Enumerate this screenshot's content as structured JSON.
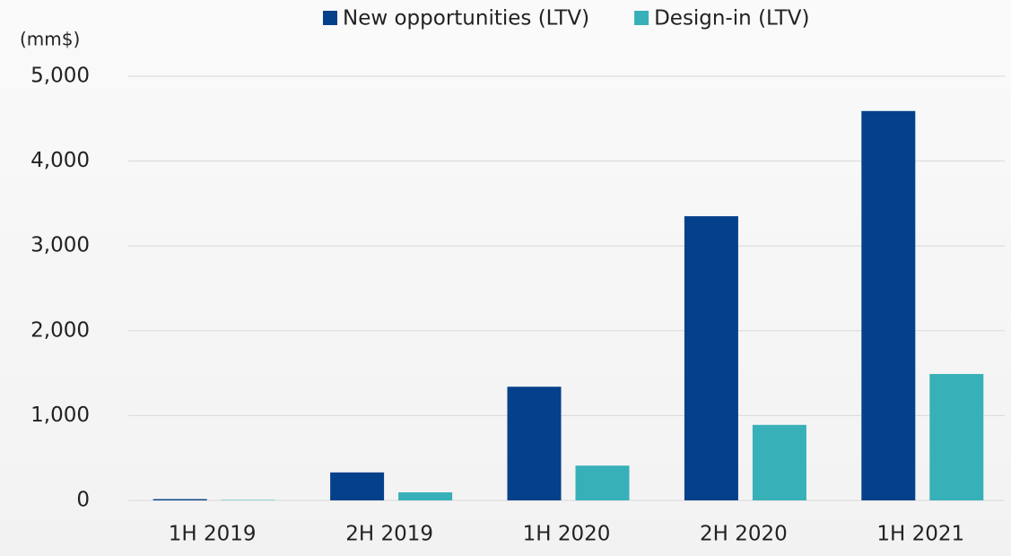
{
  "chart_data": {
    "type": "bar",
    "y_axis_label": "(mm$)",
    "categories": [
      "1H 2019",
      "2H 2019",
      "1H 2020",
      "2H 2020",
      "1H 2021"
    ],
    "series": [
      {
        "name": "New opportunities (LTV)",
        "color": "#05418a",
        "values": [
          15,
          330,
          1340,
          3350,
          4590
        ]
      },
      {
        "name": "Design-in (LTV)",
        "color": "#38b0b8",
        "values": [
          5,
          95,
          410,
          890,
          1490
        ]
      }
    ],
    "ylim": [
      0,
      5000
    ],
    "yticks": [
      0,
      {
        "value": 1000,
        "label": "1,000"
      },
      {
        "value": 2000,
        "label": "2,000"
      },
      {
        "value": 3000,
        "label": "3,000"
      },
      {
        "value": 4000,
        "label": "4,000"
      },
      {
        "value": 5000,
        "label": "5,000"
      }
    ],
    "grid": true,
    "legend": "top"
  }
}
